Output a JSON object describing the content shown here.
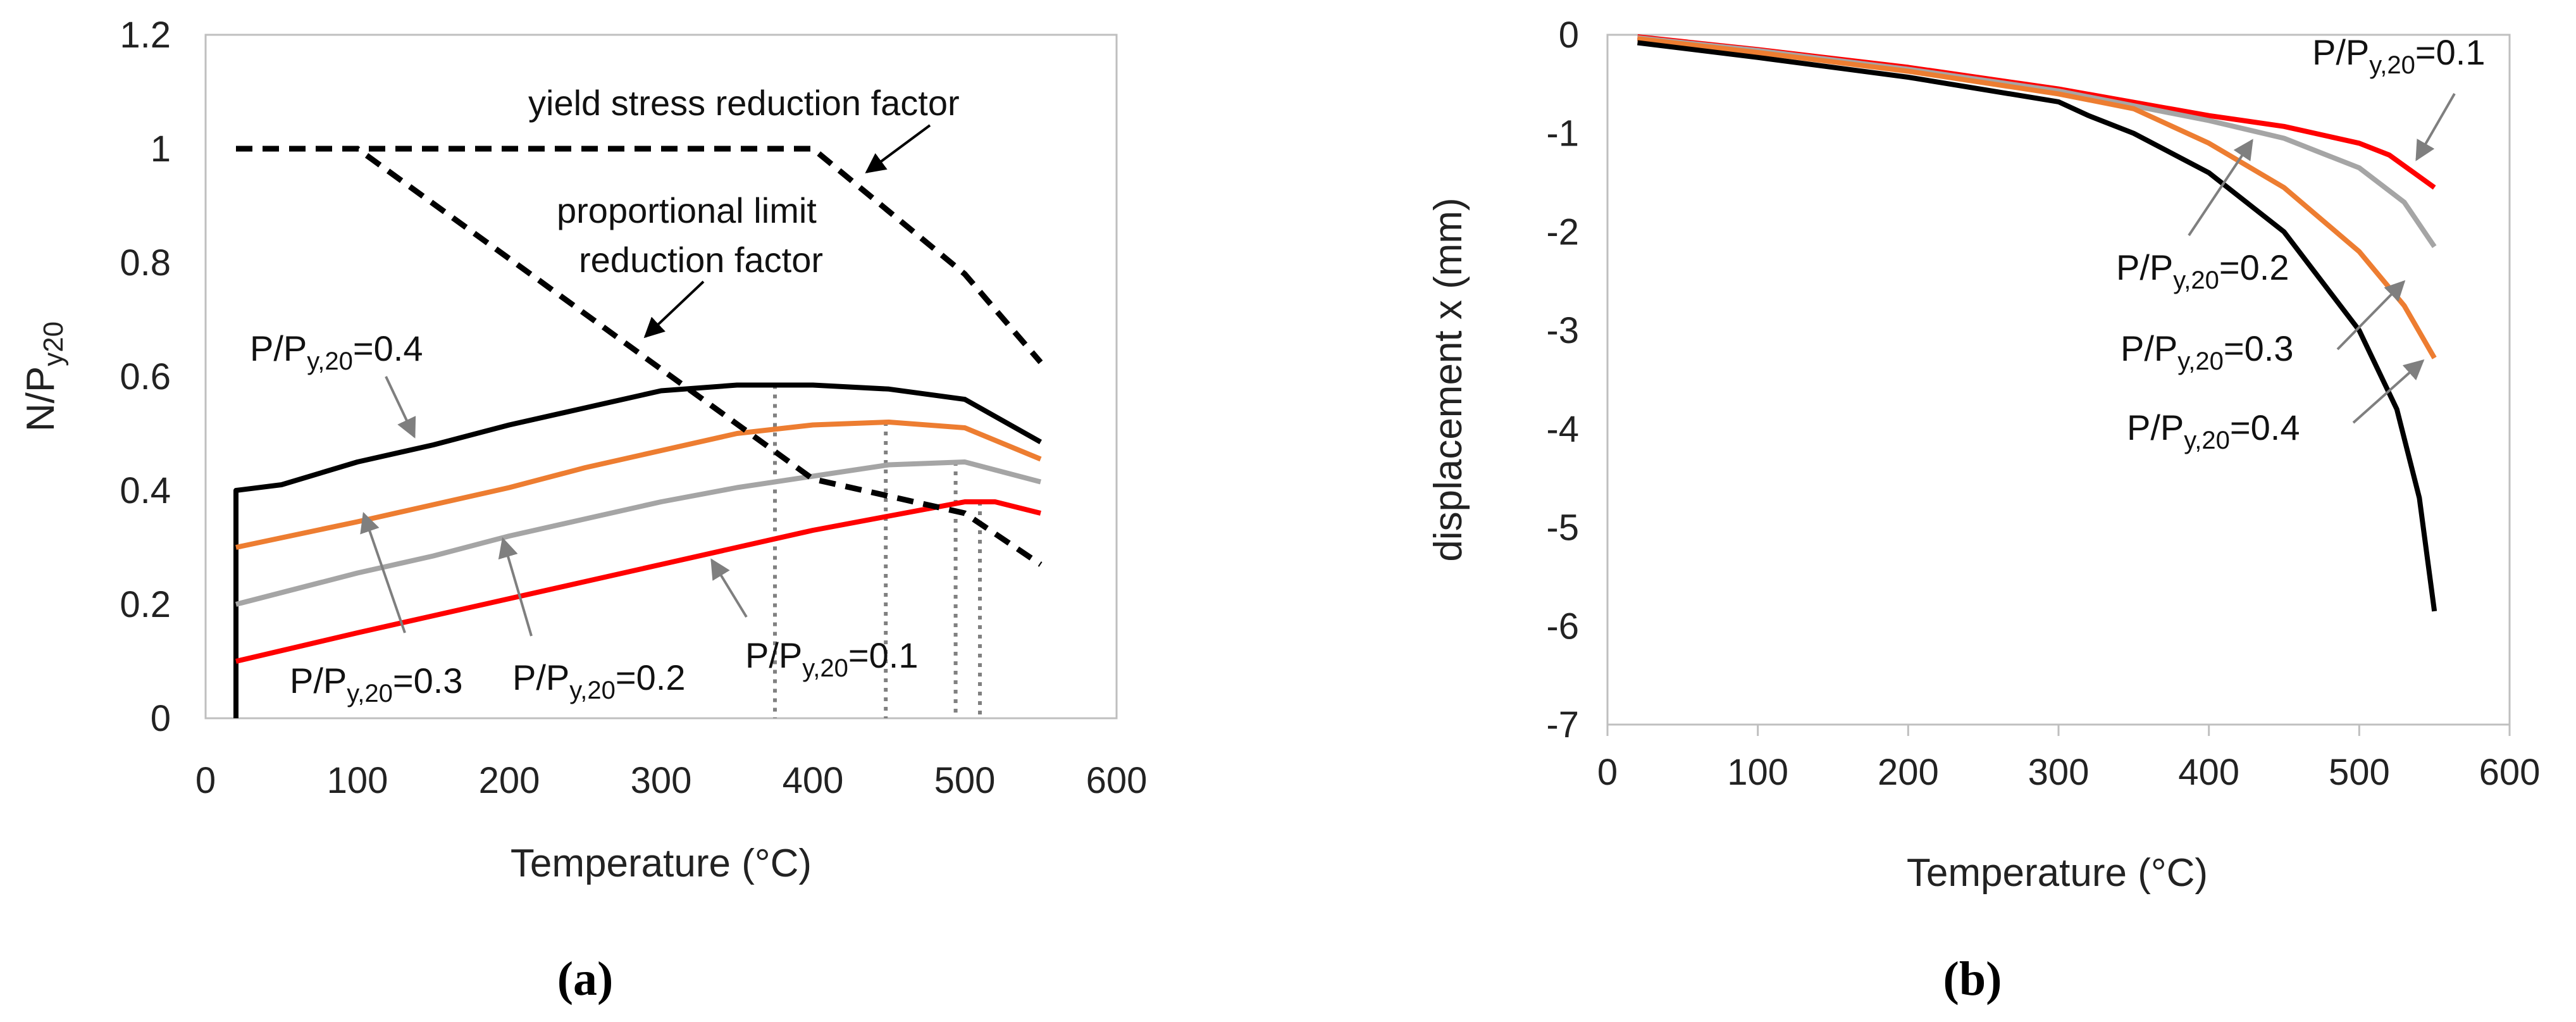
{
  "chart_data": [
    {
      "panel": "(a)",
      "type": "line",
      "xlabel": "Temperature (°C)",
      "ylabel": {
        "base": "N/P",
        "sub": "y20"
      },
      "xlim": [
        0,
        600
      ],
      "ylim": [
        0,
        1.2
      ],
      "xticks": [
        "0",
        "100",
        "200",
        "300",
        "400",
        "500",
        "600"
      ],
      "yticks": [
        "0",
        "0.2",
        "0.4",
        "0.6",
        "0.8",
        "1",
        "1.2"
      ],
      "series": [
        {
          "name": "P/Py,20=0.4",
          "color": "#000000",
          "dash": false,
          "points": [
            [
              20,
              0
            ],
            [
              20,
              0.4
            ],
            [
              50,
              0.41
            ],
            [
              100,
              0.45
            ],
            [
              150,
              0.48
            ],
            [
              200,
              0.515
            ],
            [
              250,
              0.545
            ],
            [
              300,
              0.575
            ],
            [
              350,
              0.585
            ],
            [
              400,
              0.585
            ],
            [
              450,
              0.578
            ],
            [
              500,
              0.56
            ],
            [
              550,
              0.485
            ]
          ]
        },
        {
          "name": "P/Py,20=0.3",
          "color": "#ED7D31",
          "dash": false,
          "points": [
            [
              20,
              0.3
            ],
            [
              100,
              0.345
            ],
            [
              150,
              0.375
            ],
            [
              200,
              0.405
            ],
            [
              250,
              0.44
            ],
            [
              300,
              0.47
            ],
            [
              350,
              0.5
            ],
            [
              400,
              0.515
            ],
            [
              450,
              0.52
            ],
            [
              500,
              0.51
            ],
            [
              550,
              0.455
            ]
          ]
        },
        {
          "name": "P/Py,20=0.2",
          "color": "#A5A5A5",
          "dash": false,
          "points": [
            [
              20,
              0.2
            ],
            [
              100,
              0.255
            ],
            [
              150,
              0.285
            ],
            [
              200,
              0.32
            ],
            [
              250,
              0.35
            ],
            [
              300,
              0.38
            ],
            [
              350,
              0.405
            ],
            [
              400,
              0.425
            ],
            [
              450,
              0.445
            ],
            [
              500,
              0.45
            ],
            [
              550,
              0.415
            ]
          ]
        },
        {
          "name": "P/Py,20=0.1",
          "color": "#FF0000",
          "dash": false,
          "points": [
            [
              20,
              0.1
            ],
            [
              100,
              0.15
            ],
            [
              150,
              0.18
            ],
            [
              200,
              0.21
            ],
            [
              250,
              0.24
            ],
            [
              300,
              0.27
            ],
            [
              350,
              0.3
            ],
            [
              400,
              0.33
            ],
            [
              450,
              0.355
            ],
            [
              500,
              0.38
            ],
            [
              520,
              0.38
            ],
            [
              550,
              0.36
            ]
          ]
        },
        {
          "name": "yield stress reduction factor",
          "color": "#000000",
          "dash": true,
          "points": [
            [
              20,
              1
            ],
            [
              400,
              1
            ],
            [
              500,
              0.78
            ],
            [
              550,
              0.625
            ]
          ]
        },
        {
          "name": "proportional limit reduction factor",
          "color": "#000000",
          "dash": true,
          "points": [
            [
              20,
              1
            ],
            [
              100,
              1
            ],
            [
              200,
              0.807
            ],
            [
              300,
              0.613
            ],
            [
              400,
              0.42
            ],
            [
              500,
              0.36
            ],
            [
              550,
              0.27
            ]
          ]
        }
      ],
      "dotted_vlines": [
        {
          "x": 375,
          "y": 0.585
        },
        {
          "x": 448,
          "y": 0.52
        },
        {
          "x": 494,
          "y": 0.45
        },
        {
          "x": 510,
          "y": 0.38
        }
      ],
      "annotations": [
        {
          "text": "yield stress reduction factor"
        },
        {
          "text": "proportional limit"
        },
        {
          "text": "reduction factor"
        },
        {
          "label": "P/Py,20=0.4",
          "base": "P/P",
          "sub": "y,20",
          "tail": "=0.4"
        },
        {
          "label": "P/Py,20=0.3",
          "base": "P/P",
          "sub": "y,20",
          "tail": "=0.3"
        },
        {
          "label": "P/Py,20=0.2",
          "base": "P/P",
          "sub": "y,20",
          "tail": "=0.2"
        },
        {
          "label": "P/Py,20=0.1",
          "base": "P/P",
          "sub": "y,20",
          "tail": "=0.1"
        }
      ]
    },
    {
      "panel": "(b)",
      "type": "line",
      "xlabel": "Temperature (°C)",
      "ylabel": "displacement x (mm)",
      "xlim": [
        0,
        600
      ],
      "ylim": [
        -7,
        0
      ],
      "xticks": [
        "0",
        "100",
        "200",
        "300",
        "400",
        "500",
        "600"
      ],
      "yticks": [
        "0",
        "-1",
        "-2",
        "-3",
        "-4",
        "-5",
        "-6",
        "-7"
      ],
      "series": [
        {
          "name": "P/Py,20=0.1",
          "color": "#FF0000",
          "points": [
            [
              20,
              -0.02
            ],
            [
              100,
              -0.15
            ],
            [
              200,
              -0.33
            ],
            [
              300,
              -0.55
            ],
            [
              400,
              -0.82
            ],
            [
              450,
              -0.93
            ],
            [
              500,
              -1.1
            ],
            [
              520,
              -1.22
            ],
            [
              550,
              -1.55
            ]
          ]
        },
        {
          "name": "P/Py,20=0.2",
          "color": "#A5A5A5",
          "points": [
            [
              20,
              -0.03
            ],
            [
              100,
              -0.16
            ],
            [
              200,
              -0.35
            ],
            [
              300,
              -0.57
            ],
            [
              400,
              -0.87
            ],
            [
              450,
              -1.05
            ],
            [
              500,
              -1.35
            ],
            [
              530,
              -1.7
            ],
            [
              550,
              -2.15
            ]
          ]
        },
        {
          "name": "P/Py,20=0.3",
          "color": "#ED7D31",
          "points": [
            [
              20,
              -0.04
            ],
            [
              100,
              -0.18
            ],
            [
              200,
              -0.37
            ],
            [
              300,
              -0.6
            ],
            [
              350,
              -0.75
            ],
            [
              400,
              -1.1
            ],
            [
              450,
              -1.55
            ],
            [
              500,
              -2.2
            ],
            [
              530,
              -2.75
            ],
            [
              550,
              -3.28
            ]
          ]
        },
        {
          "name": "P/Py,20=0.4",
          "color": "#000000",
          "points": [
            [
              20,
              -0.08
            ],
            [
              100,
              -0.23
            ],
            [
              200,
              -0.43
            ],
            [
              300,
              -0.68
            ],
            [
              320,
              -0.82
            ],
            [
              350,
              -1.0
            ],
            [
              400,
              -1.4
            ],
            [
              450,
              -2.0
            ],
            [
              500,
              -3.0
            ],
            [
              525,
              -3.8
            ],
            [
              540,
              -4.7
            ],
            [
              550,
              -5.85
            ]
          ]
        }
      ],
      "annotations": [
        {
          "label": "P/Py,20=0.1",
          "base": "P/P",
          "sub": "y,20",
          "tail": "=0.1"
        },
        {
          "label": "P/Py,20=0.2",
          "base": "P/P",
          "sub": "y,20",
          "tail": "=0.2"
        },
        {
          "label": "P/Py,20=0.3",
          "base": "P/P",
          "sub": "y,20",
          "tail": "=0.3"
        },
        {
          "label": "P/Py,20=0.4",
          "base": "P/P",
          "sub": "y,20",
          "tail": "=0.4"
        }
      ]
    }
  ],
  "captions": [
    "(a)",
    "(b)"
  ]
}
